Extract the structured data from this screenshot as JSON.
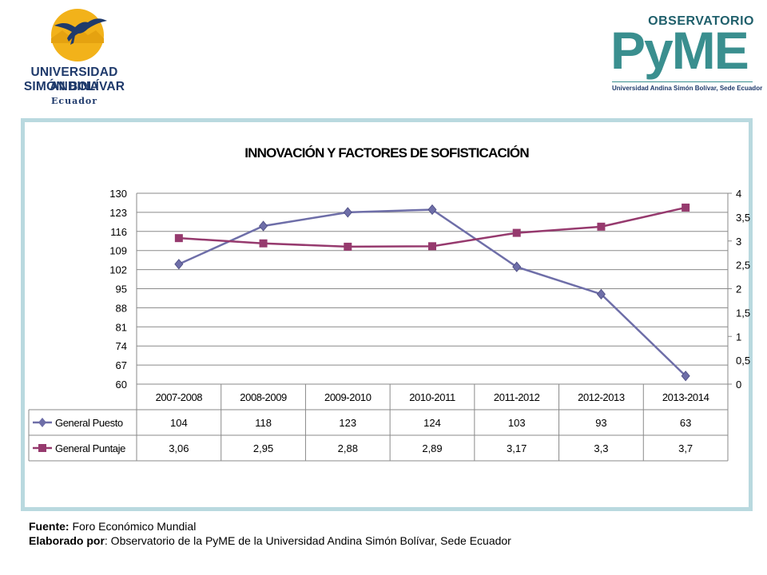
{
  "header": {
    "uasb_logo": {
      "line1": "UNIVERSIDAD ANDINA",
      "line2": "SIMÓN BOLÍVAR",
      "line3": "Ecuador"
    },
    "pyme_logo": {
      "top": "OBSERVATORIO",
      "main": "PyME",
      "subtitle": "Universidad Andina Simón Bolívar, Sede Ecuador"
    }
  },
  "chart_data": {
    "type": "line",
    "title": "INNOVACIÓN Y FACTORES DE  SOFISTICACIÓN",
    "categories": [
      "2007-2008",
      "2008-2009",
      "2009-2010",
      "2010-2011",
      "2011-2012",
      "2012-2013",
      "2013-2014"
    ],
    "series": [
      {
        "name": "General Puesto",
        "axis": "left",
        "values": [
          104,
          118,
          123,
          124,
          103,
          93,
          63
        ],
        "display": [
          "104",
          "118",
          "123",
          "124",
          "103",
          "93",
          "63"
        ],
        "color": "#6e6ea8",
        "marker": "diamond"
      },
      {
        "name": "General Puntaje",
        "axis": "right",
        "values": [
          3.06,
          2.95,
          2.88,
          2.89,
          3.17,
          3.3,
          3.7
        ],
        "display": [
          "3,06",
          "2,95",
          "2,88",
          "2,89",
          "3,17",
          "3,3",
          "3,7"
        ],
        "color": "#963a6e",
        "marker": "square"
      }
    ],
    "y_left": {
      "min": 60,
      "max": 130,
      "ticks": [
        60,
        67,
        74,
        81,
        88,
        95,
        102,
        109,
        116,
        123,
        130
      ],
      "tick_labels": [
        "60",
        "67",
        "74",
        "81",
        "88",
        "95",
        "102",
        "109",
        "116",
        "123",
        "130"
      ]
    },
    "y_right": {
      "min": 0,
      "max": 4,
      "ticks": [
        0,
        0.5,
        1,
        1.5,
        2,
        2.5,
        3,
        3.5,
        4
      ],
      "tick_labels": [
        "0",
        "0,5",
        "1",
        "1,5",
        "2",
        "2,5",
        "3",
        "3,5",
        "4"
      ]
    },
    "gridlines": true,
    "data_table": true,
    "legend": "in data table"
  },
  "footer": {
    "source_label": "Fuente:",
    "source_text": " Foro Económico Mundial",
    "author_label": "Elaborado por",
    "author_text": ": Observatorio de la PyME de la Universidad Andina Simón Bolívar, Sede Ecuador"
  }
}
